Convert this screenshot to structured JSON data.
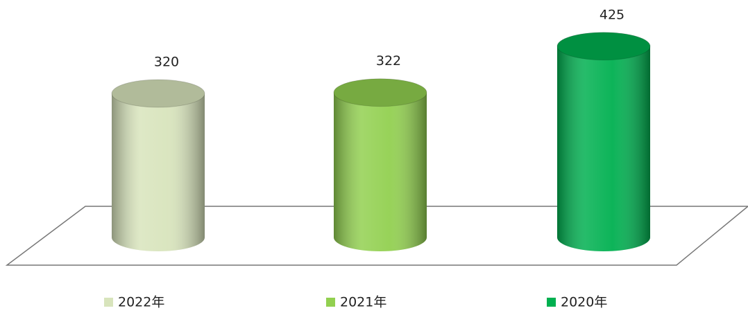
{
  "chart_data": {
    "type": "bar",
    "series": [
      {
        "name": "2022年",
        "color": "#d8e4bc",
        "values": [
          320
        ]
      },
      {
        "name": "2021年",
        "color": "#92d050",
        "values": [
          322
        ]
      },
      {
        "name": "2020年",
        "color": "#00b050",
        "values": [
          425
        ]
      }
    ]
  }
}
